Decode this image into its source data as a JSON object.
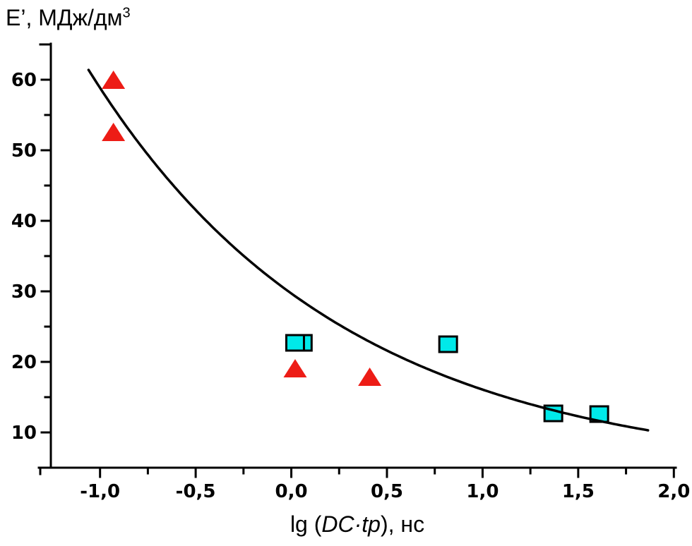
{
  "page": {
    "background": "#ffffff"
  },
  "chart_data": {
    "type": "scatter",
    "title": "",
    "ylabel": "E’, МДж/дм³",
    "ylabel_parts": {
      "main": "E’, МДж/дм",
      "superscript": "3"
    },
    "xlabel": "lg (DC·tp), нс",
    "xlabel_parts": {
      "prefix": "lg (",
      "italic": "DC·tp",
      "suffix": "), нс"
    },
    "xlim": [
      -1.32,
      2.01
    ],
    "ylim": [
      5,
      65.1
    ],
    "x_ticks": [
      -1.0,
      -0.5,
      0.0,
      0.5,
      1.0,
      1.5,
      2.0
    ],
    "x_tick_labels": [
      "-1,0",
      "-0,5",
      "0,0",
      "0,5",
      "1,0",
      "1,5",
      "2,0"
    ],
    "x_minor_ticks": [
      -0.75,
      -0.25,
      0.25,
      0.75,
      1.25,
      1.75
    ],
    "y_ticks": [
      10,
      20,
      30,
      40,
      50,
      60
    ],
    "y_tick_labels": [
      "10",
      "20",
      "30",
      "40",
      "50",
      "60"
    ],
    "y_minor_ticks": [
      15,
      25,
      35,
      45,
      55
    ],
    "axis_end_ticks": {
      "y_top_value": 65,
      "x_left_cap": true
    },
    "grid": false,
    "legend": null,
    "axis_color": "#000000",
    "series": [
      {
        "name": "squares",
        "marker": "square",
        "color": "#00e9e9",
        "border": "#000000",
        "points": [
          [
            0.06,
            22.7
          ],
          [
            0.02,
            22.7
          ],
          [
            0.82,
            22.5
          ],
          [
            1.37,
            12.7
          ],
          [
            1.61,
            12.6
          ]
        ]
      },
      {
        "name": "triangles",
        "marker": "triangle",
        "color": "#ed1c16",
        "points": [
          [
            -0.93,
            60.0
          ],
          [
            -0.93,
            52.6
          ],
          [
            0.02,
            19.1
          ],
          [
            0.41,
            17.9
          ]
        ]
      }
    ],
    "curve": {
      "type": "exponential_fit",
      "formula": "y = 25.6·exp(−0.76·x) + 4.1",
      "A": 25.6,
      "k": 0.76,
      "C": 4.1,
      "x_start": -1.06,
      "x_end": 1.87,
      "color": "#000000",
      "width": 3.5
    }
  }
}
